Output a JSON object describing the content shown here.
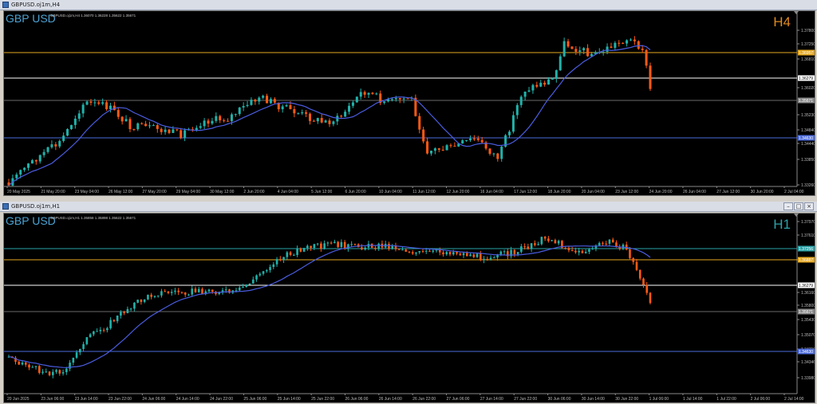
{
  "top": {
    "title": "GBPUSD.oj1m,H4",
    "symbol": "GBP USD",
    "ohlc": "GBPUSD.oj1m,H4  1.36070 1.36228 1.35622 1.35671",
    "timeframe": "H4",
    "tf_color": "#e08a1e",
    "price_labels": [
      "1.37800",
      "1.37250",
      "1.36810",
      "1.36020",
      "1.35230",
      "1.34840",
      "1.34440",
      "1.33850",
      "1.33260"
    ],
    "level_tags": [
      {
        "text": "1.36957",
        "color": "#e6a820"
      },
      {
        "text": "1.36279",
        "color": "#ffffff"
      },
      {
        "text": "1.35671",
        "color": "#888888"
      },
      {
        "text": "1.34630",
        "color": "#4d6cdc"
      }
    ],
    "time_labels": [
      "20 May 2025",
      "21 May 20:00",
      "23 May 04:00",
      "26 May 12:00",
      "27 May 20:00",
      "29 May 04:00",
      "30 May 12:00",
      "2 Jun 20:00",
      "4 Jun 04:00",
      "5 Jun 12:00",
      "6 Jun 20:00",
      "10 Jun 04:00",
      "11 Jun 12:00",
      "12 Jun 20:00",
      "16 Jun 04:00",
      "17 Jun 12:00",
      "18 Jun 20:00",
      "20 Jun 04:00",
      "23 Jun 12:00",
      "24 Jun 20:00",
      "26 Jun 04:00",
      "27 Jun 12:00",
      "30 Jun 20:00",
      "2 Jul 04:00"
    ]
  },
  "bottom": {
    "title": "GBPUSD.oj1m,H1",
    "symbol": "GBP USD",
    "ohlc": "GBPUSD.oj1m,H1  1.35858 1.35898 1.35622 1.35671",
    "timeframe": "H1",
    "tf_color": "#2aa3a8",
    "price_labels": [
      "1.37970",
      "1.37610",
      "1.36880",
      "1.36160",
      "1.35800",
      "1.35430",
      "1.35070",
      "1.34710",
      "1.34346",
      "1.33980"
    ],
    "level_tags": [
      {
        "text": "1.37256",
        "color": "#2aa3a8"
      },
      {
        "text": "1.36887",
        "color": "#e6a820"
      },
      {
        "text": "1.36279",
        "color": "#ffffff"
      },
      {
        "text": "1.35671",
        "color": "#888888"
      },
      {
        "text": "1.34630",
        "color": "#4d6cdc"
      }
    ],
    "time_labels": [
      "20 Jun 2025",
      "23 Jun 06:00",
      "23 Jun 14:00",
      "23 Jun 22:00",
      "24 Jun 06:00",
      "24 Jun 14:00",
      "24 Jun 22:00",
      "25 Jun 06:00",
      "25 Jun 14:00",
      "25 Jun 22:00",
      "26 Jun 06:00",
      "26 Jun 14:00",
      "26 Jun 22:00",
      "27 Jun 06:00",
      "27 Jun 14:00",
      "27 Jun 22:00",
      "30 Jun 06:00",
      "30 Jun 14:00",
      "30 Jun 22:00",
      "1 Jul 06:00",
      "1 Jul 14:00",
      "1 Jul 22:00",
      "2 Jul 06:00",
      "2 Jul 14:00"
    ]
  },
  "colors": {
    "bull": "#20b2aa",
    "bear": "#ff5a14",
    "ma": "#4a5ce0"
  }
}
